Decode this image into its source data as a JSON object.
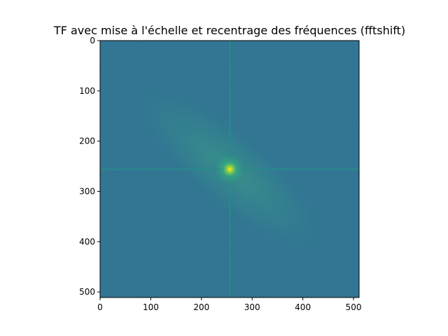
{
  "chart_data": {
    "type": "heatmap",
    "title": "TF avec mise à l'échelle et recentrage des fréquences (fftshift)",
    "xlabel": "",
    "ylabel": "",
    "xlim": [
      0,
      511
    ],
    "ylim": [
      511,
      0
    ],
    "x_ticks": [
      0,
      100,
      200,
      300,
      400,
      500
    ],
    "y_ticks": [
      0,
      100,
      200,
      300,
      400,
      500
    ],
    "image_size": [
      512,
      512
    ],
    "colormap": "viridis",
    "center": [
      256,
      256
    ],
    "description_features": [
      "bright central peak",
      "horizontal cross line at row 256",
      "vertical cross line at column 256",
      "diagonal streak from top-left to bottom-right"
    ],
    "grid": false,
    "legend": "none"
  },
  "colors": {
    "background": "#2b6e8e",
    "cross_line": "#2a8a8a",
    "center_peak": "#fde725",
    "diagonal_glow": "#3a9a88"
  }
}
